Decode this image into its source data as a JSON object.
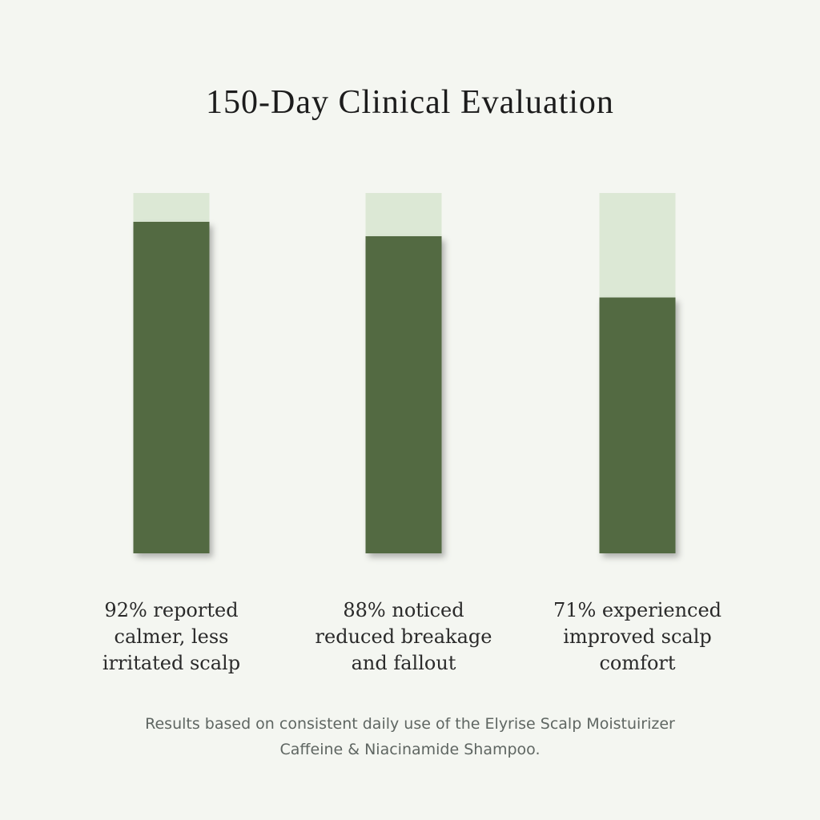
{
  "title": "150-Day Clinical Evaluation",
  "footnote": "Results based on consistent daily use of the Elyrise Scalp Moistuirizer\nCaffeine & Niacinamide Shampoo.",
  "colors": {
    "background": "#f4f6f1",
    "bar_fill": "#536a43",
    "bar_track": "#dce8d5"
  },
  "chart_data": {
    "type": "bar",
    "categories": [
      "92% reported\ncalmer, less\nirritated scalp",
      "88% noticed\nreduced breakage\nand fallout",
      "71% experienced\nimproved scalp\ncomfort"
    ],
    "values": [
      92,
      88,
      71
    ],
    "ylim": [
      0,
      100
    ],
    "title": "150-Day Clinical Evaluation",
    "xlabel": "",
    "ylabel": "",
    "grid": false,
    "legend": "none"
  }
}
